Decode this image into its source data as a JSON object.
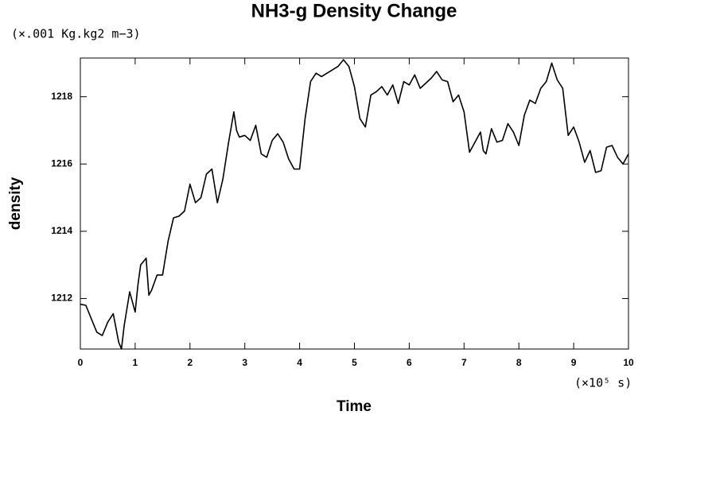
{
  "chart_data": {
    "type": "line",
    "title": "NH3-g Density Change",
    "subtitle": "(×.001 Kg.kg2 m−3)",
    "x_label": "Time",
    "x_unit_label": "(×10⁵ s)",
    "y_label": "density",
    "xlim": [
      0,
      10
    ],
    "xticks": [
      0,
      1,
      2,
      3,
      4,
      5,
      6,
      7,
      8,
      9,
      10
    ],
    "ylim": [
      1210.5,
      1219.15
    ],
    "yticks": [
      1212,
      1214,
      1216,
      1218
    ],
    "grid": false,
    "x": [
      0,
      0.1,
      0.2,
      0.3,
      0.4,
      0.5,
      0.6,
      0.7,
      0.75,
      0.8,
      0.9,
      1.0,
      1.05,
      1.1,
      1.2,
      1.25,
      1.3,
      1.4,
      1.5,
      1.6,
      1.7,
      1.8,
      1.9,
      2.0,
      2.1,
      2.2,
      2.3,
      2.4,
      2.5,
      2.6,
      2.7,
      2.8,
      2.85,
      2.9,
      3.0,
      3.1,
      3.2,
      3.3,
      3.4,
      3.5,
      3.6,
      3.7,
      3.8,
      3.9,
      4.0,
      4.1,
      4.2,
      4.3,
      4.4,
      4.5,
      4.6,
      4.7,
      4.8,
      4.9,
      5.0,
      5.1,
      5.2,
      5.3,
      5.4,
      5.5,
      5.6,
      5.7,
      5.8,
      5.9,
      6.0,
      6.1,
      6.2,
      6.3,
      6.4,
      6.5,
      6.6,
      6.7,
      6.8,
      6.9,
      7.0,
      7.1,
      7.2,
      7.3,
      7.35,
      7.4,
      7.5,
      7.6,
      7.7,
      7.8,
      7.9,
      8.0,
      8.1,
      8.2,
      8.3,
      8.4,
      8.5,
      8.6,
      8.7,
      8.8,
      8.9,
      9.0,
      9.1,
      9.2,
      9.3,
      9.4,
      9.5,
      9.6,
      9.7,
      9.8,
      9.9,
      10.0
    ],
    "series": [
      {
        "color": "#000000",
        "values": [
          1211.83,
          1211.8,
          1211.4,
          1211.0,
          1210.9,
          1211.3,
          1211.55,
          1210.7,
          1210.5,
          1211.2,
          1212.2,
          1211.6,
          1212.4,
          1213.0,
          1213.2,
          1212.1,
          1212.25,
          1212.7,
          1212.7,
          1213.7,
          1214.4,
          1214.45,
          1214.6,
          1215.4,
          1214.85,
          1215.0,
          1215.7,
          1215.85,
          1214.85,
          1215.55,
          1216.6,
          1217.55,
          1217.0,
          1216.8,
          1216.85,
          1216.7,
          1217.15,
          1216.3,
          1216.2,
          1216.7,
          1216.9,
          1216.65,
          1216.15,
          1215.85,
          1215.85,
          1217.35,
          1218.45,
          1218.7,
          1218.6,
          1218.7,
          1218.8,
          1218.9,
          1219.1,
          1218.9,
          1218.3,
          1217.35,
          1217.1,
          1218.05,
          1218.15,
          1218.3,
          1218.05,
          1218.35,
          1217.8,
          1218.45,
          1218.35,
          1218.65,
          1218.25,
          1218.4,
          1218.55,
          1218.75,
          1218.5,
          1218.45,
          1217.85,
          1218.05,
          1217.55,
          1216.35,
          1216.65,
          1216.95,
          1216.4,
          1216.3,
          1217.05,
          1216.65,
          1216.7,
          1217.2,
          1216.95,
          1216.55,
          1217.45,
          1217.9,
          1217.8,
          1218.25,
          1218.45,
          1219.0,
          1218.5,
          1218.25,
          1216.85,
          1217.1,
          1216.65,
          1216.05,
          1216.4,
          1215.75,
          1215.8,
          1216.5,
          1216.55,
          1216.2,
          1216.0,
          1216.3
        ]
      }
    ]
  }
}
